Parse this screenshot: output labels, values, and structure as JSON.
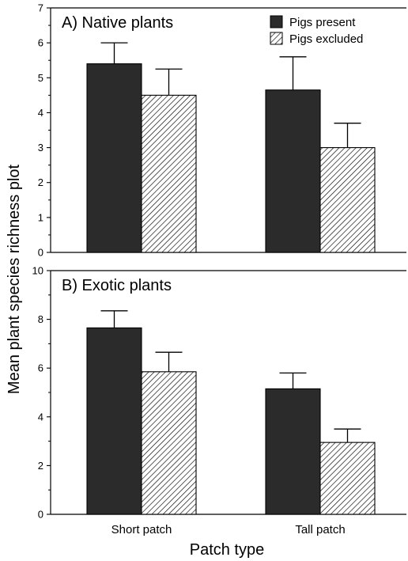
{
  "chart_data": {
    "type": "bar",
    "categories": [
      "Short patch",
      "Tall patch"
    ],
    "xlabel": "Patch type",
    "ylabel": "Mean plant species richness plot",
    "legend": {
      "placement": "top-right",
      "entries": [
        {
          "name": "Pigs present",
          "fill": "dark"
        },
        {
          "name": "Pigs excluded",
          "fill": "hatched"
        }
      ]
    },
    "colors": {
      "present": "#2b2b2b",
      "hatch": "#000000",
      "axis": "#000000"
    },
    "grid": false,
    "panels": [
      {
        "title": "A) Native plants",
        "ylim": [
          0,
          7
        ],
        "yticks": [
          0,
          1,
          2,
          3,
          4,
          5,
          6,
          7
        ],
        "series": [
          {
            "name": "Pigs present",
            "values": [
              5.4,
              4.65
            ],
            "errors": [
              0.6,
              0.95
            ]
          },
          {
            "name": "Pigs excluded",
            "values": [
              4.5,
              3.0
            ],
            "errors": [
              0.75,
              0.7
            ]
          }
        ]
      },
      {
        "title": "B) Exotic plants",
        "ylim": [
          0,
          10
        ],
        "yticks": [
          0,
          2,
          4,
          6,
          8,
          10
        ],
        "series": [
          {
            "name": "Pigs present",
            "values": [
              7.65,
              5.15
            ],
            "errors": [
              0.7,
              0.65
            ]
          },
          {
            "name": "Pigs excluded",
            "values": [
              5.85,
              2.95
            ],
            "errors": [
              0.8,
              0.55
            ]
          }
        ]
      }
    ]
  }
}
